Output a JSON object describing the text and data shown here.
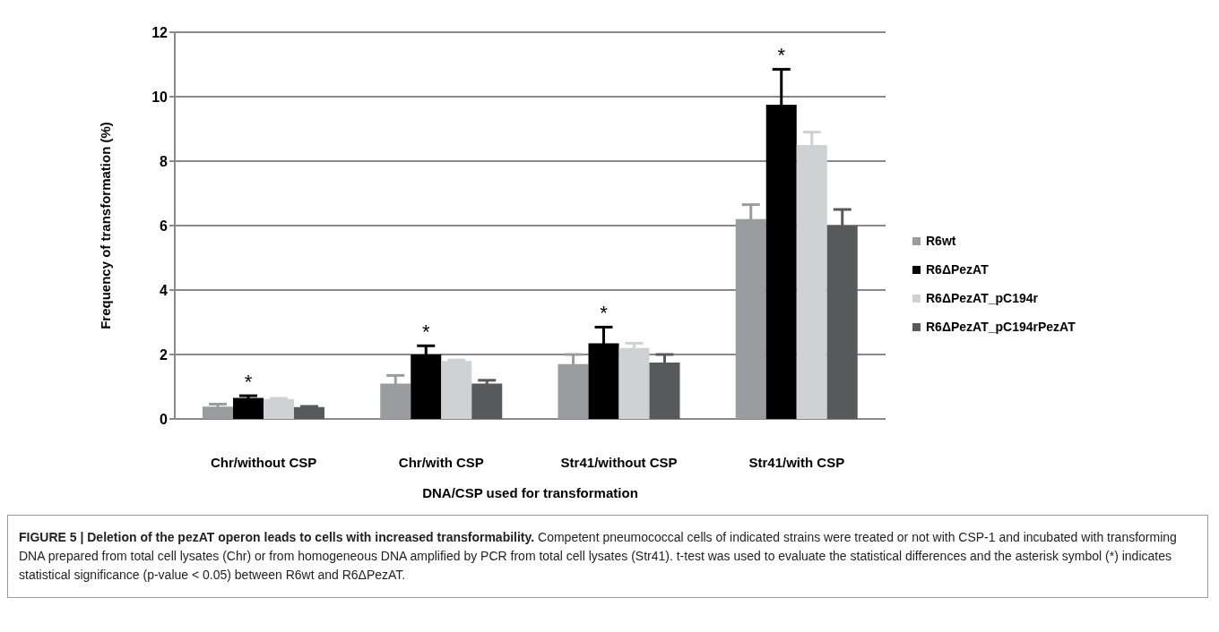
{
  "chart_data": {
    "type": "bar",
    "title": "FIGURE 5 | Deletion of the pezAT operon leads to cells with increased transformability.",
    "xlabel": "DNA/CSP used for transformation",
    "ylabel": "Frequency of transformation  (%)",
    "categories": [
      "Chr/without CSP",
      "Chr/with CSP",
      "Str41/without CSP",
      "Str41/with CSP"
    ],
    "series": [
      {
        "name": "R6wt",
        "color": "#9a9c9f",
        "values": [
          0.38,
          1.1,
          1.7,
          6.2
        ],
        "errors": [
          0.08,
          0.25,
          0.3,
          0.45
        ]
      },
      {
        "name": "R6ΔPezAT",
        "color": "#000000",
        "values": [
          0.65,
          2.0,
          2.35,
          9.75
        ],
        "errors": [
          0.07,
          0.27,
          0.5,
          1.1
        ],
        "value_labels": [
          "*",
          "*",
          "*",
          "*"
        ]
      },
      {
        "name": "R6ΔPezAT_pC194r",
        "color": "#d0d1d3",
        "values": [
          0.62,
          1.8,
          2.2,
          8.5
        ],
        "errors": [
          0.02,
          0.03,
          0.15,
          0.4
        ]
      },
      {
        "name": "R6ΔPezAT_pC194rPezAT",
        "color": "#58595b",
        "values": [
          0.37,
          1.1,
          1.75,
          6.0
        ],
        "errors": [
          0.02,
          0.1,
          0.25,
          0.5
        ]
      }
    ],
    "ylim": [
      0,
      12
    ],
    "yticks": [
      0,
      2,
      4,
      6,
      8,
      10,
      12
    ],
    "grid": "y",
    "legend": "right",
    "annotations": [
      "Competent pneumococcal cells of indicated strains were treated or not with CSP-1 and incubated with transforming DNA prepared from total cell lysates (Chr) or from homogeneous DNA amplified by PCR from total cell lysates (Str41). t-test was used to evaluate the statistical differences and the asterisk symbol (*) indicates statistical significance (p-value < 0.05) between R6wt and R6ΔPezAT."
    ]
  }
}
